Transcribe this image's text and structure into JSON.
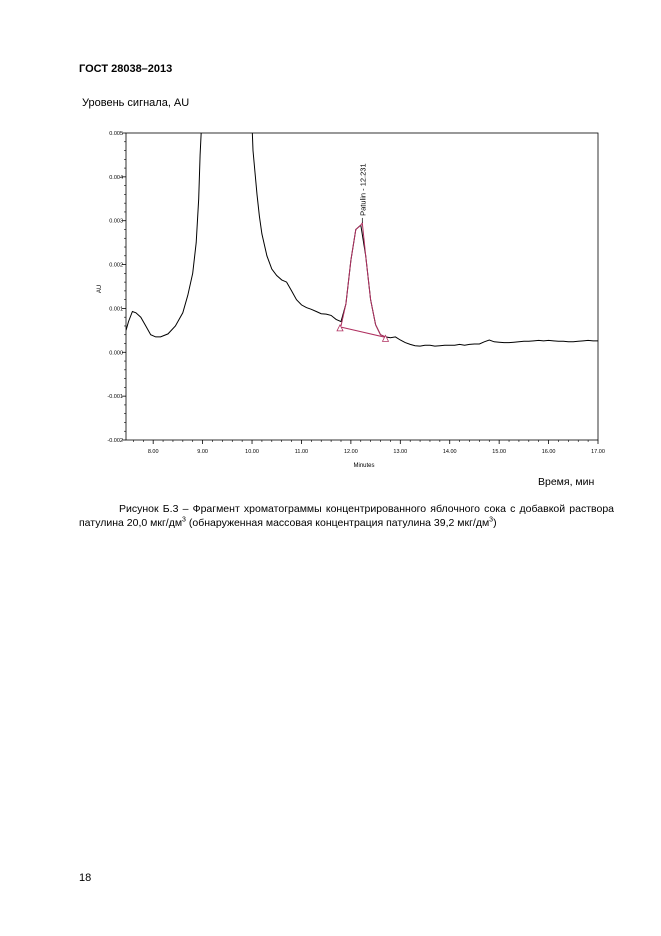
{
  "document": {
    "header": "ГОСТ 28038–2013",
    "y_axis_caption": "Уровень сигнала, AU",
    "x_axis_caption": "Время, мин",
    "caption": {
      "part1": "Рисунок Б.3 – Фрагмент хроматограммы концентрированного яблочного сока с добавкой раствора патулина 20,0 мкг/дм",
      "sup1": "3",
      "part2": " (обнаруженная массовая концентрация патулина 39,2 мкг/дм",
      "sup2": "3",
      "part3": ")"
    },
    "page_number": "18"
  },
  "chart_data": {
    "type": "line",
    "xlabel": "Minutes",
    "ylabel": "AU",
    "xlim": [
      7.45,
      17.0
    ],
    "ylim": [
      -0.002,
      0.005
    ],
    "x_ticks": [
      "8.00",
      "9.00",
      "10.00",
      "11.00",
      "12.00",
      "13.00",
      "14.00",
      "15.00",
      "16.00",
      "17.00"
    ],
    "y_ticks": [
      "0.005",
      "0.004",
      "0.003",
      "0.002",
      "0.001",
      "0.000",
      "-0.001",
      "-0.002"
    ],
    "series": [
      {
        "x": [
          7.45,
          7.5,
          7.58,
          7.65,
          7.75,
          7.85,
          7.95,
          8.05,
          8.15,
          8.3,
          8.45,
          8.6,
          8.7,
          8.8,
          8.87,
          8.92,
          8.95,
          8.98,
          10.0,
          10.02,
          10.06,
          10.1,
          10.15,
          10.2,
          10.3,
          10.4,
          10.5,
          10.6,
          10.7,
          10.8,
          10.9,
          11.0,
          11.1,
          11.2,
          11.3,
          11.4,
          11.5,
          11.6,
          11.7,
          11.8,
          11.9,
          12.0,
          12.1,
          12.2,
          12.3,
          12.4,
          12.5,
          12.6,
          12.7,
          12.8,
          12.9,
          13.0,
          13.1,
          13.2,
          13.3,
          13.4,
          13.5,
          13.6,
          13.7,
          13.8,
          13.9,
          14.0,
          14.1,
          14.2,
          14.3,
          14.4,
          14.5,
          14.6,
          14.7,
          14.8,
          14.9,
          15.0,
          15.1,
          15.2,
          15.3,
          15.4,
          15.5,
          15.6,
          15.7,
          15.8,
          15.9,
          16.0,
          16.1,
          16.2,
          16.3,
          16.4,
          16.5,
          16.6,
          16.7,
          16.8,
          16.9,
          17.0
        ],
        "values": [
          0.0005,
          0.0007,
          0.00093,
          0.0009,
          0.0008,
          0.0006,
          0.0004,
          0.00035,
          0.00035,
          0.00042,
          0.0006,
          0.0009,
          0.0013,
          0.0018,
          0.0025,
          0.0035,
          0.0045,
          0.0052,
          0.0052,
          0.0046,
          0.0041,
          0.0036,
          0.0031,
          0.0027,
          0.0022,
          0.0019,
          0.00175,
          0.00165,
          0.0016,
          0.0014,
          0.0012,
          0.00108,
          0.00102,
          0.00098,
          0.00093,
          0.00088,
          0.00087,
          0.00084,
          0.00075,
          0.0007,
          0.0011,
          0.0021,
          0.0028,
          0.0029,
          0.0022,
          0.0012,
          0.00063,
          0.0004,
          0.00035,
          0.00033,
          0.00035,
          0.00028,
          0.00022,
          0.00018,
          0.00015,
          0.00014,
          0.00016,
          0.00016,
          0.00014,
          0.00015,
          0.00016,
          0.00016,
          0.00016,
          0.00018,
          0.00016,
          0.00018,
          0.00019,
          0.00019,
          0.00024,
          0.00028,
          0.00024,
          0.00023,
          0.00022,
          0.00022,
          0.00023,
          0.00024,
          0.00025,
          0.00025,
          0.00026,
          0.00027,
          0.00026,
          0.00027,
          0.00026,
          0.00025,
          0.00025,
          0.00024,
          0.00024,
          0.00025,
          0.00026,
          0.00027,
          0.00026,
          0.00026
        ]
      }
    ],
    "peak": {
      "label": "Patulin - 12.231",
      "x": [
        11.8,
        11.9,
        12.0,
        12.1,
        12.2,
        12.231,
        12.3,
        12.4,
        12.5,
        12.6,
        12.7
      ],
      "values": [
        0.0006,
        0.0011,
        0.0021,
        0.0028,
        0.0029,
        0.00295,
        0.0022,
        0.0012,
        0.00063,
        0.0004,
        0.00035
      ],
      "baseline_start": [
        11.78,
        0.00058
      ],
      "baseline_end": [
        12.7,
        0.00034
      ],
      "color": "#b03060"
    }
  }
}
